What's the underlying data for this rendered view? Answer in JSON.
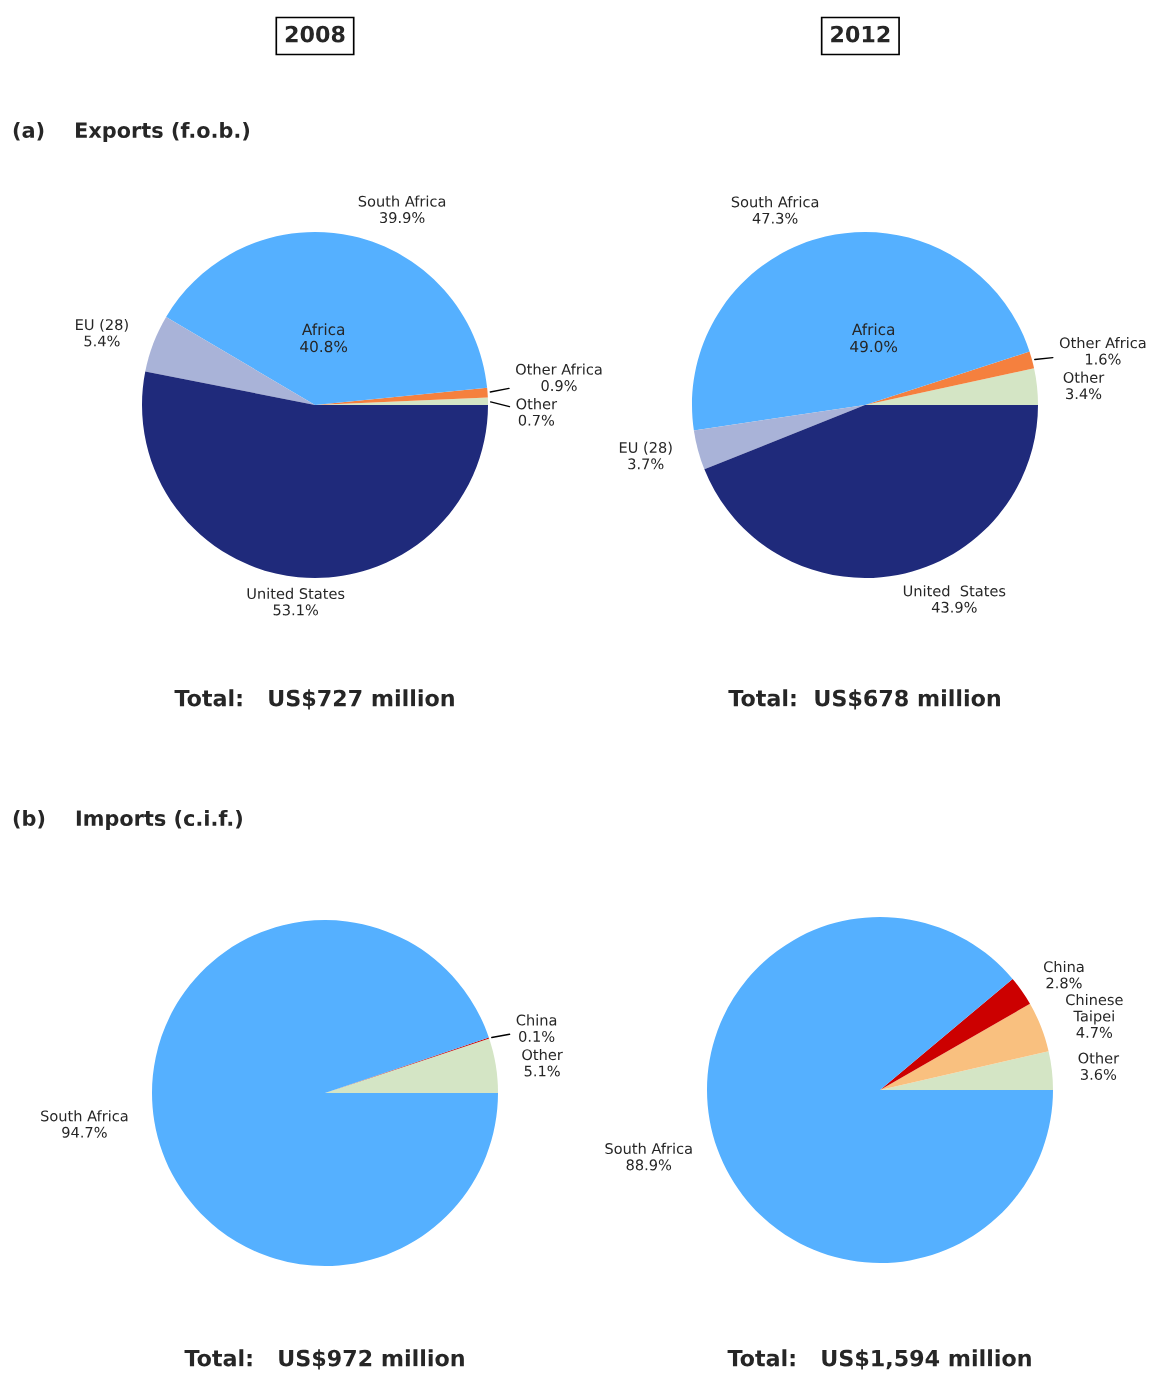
{
  "chart_data": [
    {
      "type": "pie",
      "title": "2008",
      "subtitle": "(a)    Exports (f.o.b.)",
      "categories": [
        "Other",
        "Other Africa",
        "South Africa",
        "EU (28)",
        "United States"
      ],
      "values": [
        0.7,
        0.9,
        39.9,
        5.4,
        53.1
      ],
      "value_labels": [
        "0.7%",
        "0.9%",
        "39.9%",
        "5.4%",
        "53.1%"
      ],
      "colors": [
        "#d4e5c5",
        "#f5803e",
        "#55b0ff",
        "#a9b3d8",
        "#1f2a7b"
      ],
      "annotations": [
        "Africa\n40.8%",
        "Total:   US$727 million"
      ]
    },
    {
      "type": "pie",
      "title": "2012",
      "categories": [
        "Other",
        "Other Africa",
        "South Africa",
        "EU (28)",
        "United  States"
      ],
      "values": [
        3.4,
        1.6,
        47.3,
        3.7,
        43.9
      ],
      "value_labels": [
        "3.4%",
        "1.6%",
        "47.3%",
        "3.7%",
        "43.9%"
      ],
      "colors": [
        "#d4e5c5",
        "#f5803e",
        "#55b0ff",
        "#a9b3d8",
        "#1f2a7b"
      ],
      "annotations": [
        "Africa\n49.0%",
        "Total:  US$678 million"
      ]
    },
    {
      "type": "pie",
      "subtitle": "(b)    Imports (c.i.f.)",
      "categories": [
        "Other",
        "China",
        "South Africa"
      ],
      "values": [
        5.1,
        0.1,
        94.7
      ],
      "value_labels": [
        "5.1%",
        "0.1%",
        "94.7%"
      ],
      "colors": [
        "#d4e5c5",
        "#cc0000",
        "#55b0ff"
      ],
      "annotations": [
        "Total:   US$972 million"
      ]
    },
    {
      "type": "pie",
      "categories": [
        "Other",
        "Chinese\nTaipei",
        "China",
        "South Africa"
      ],
      "values": [
        3.6,
        4.7,
        2.8,
        88.9
      ],
      "value_labels": [
        "3.6%",
        "4.7%",
        "2.8%",
        "88.9%"
      ],
      "colors": [
        "#d4e5c5",
        "#f9c07f",
        "#cc0000",
        "#55b0ff"
      ],
      "annotations": [
        "Total:   US$1,594 million"
      ]
    }
  ]
}
